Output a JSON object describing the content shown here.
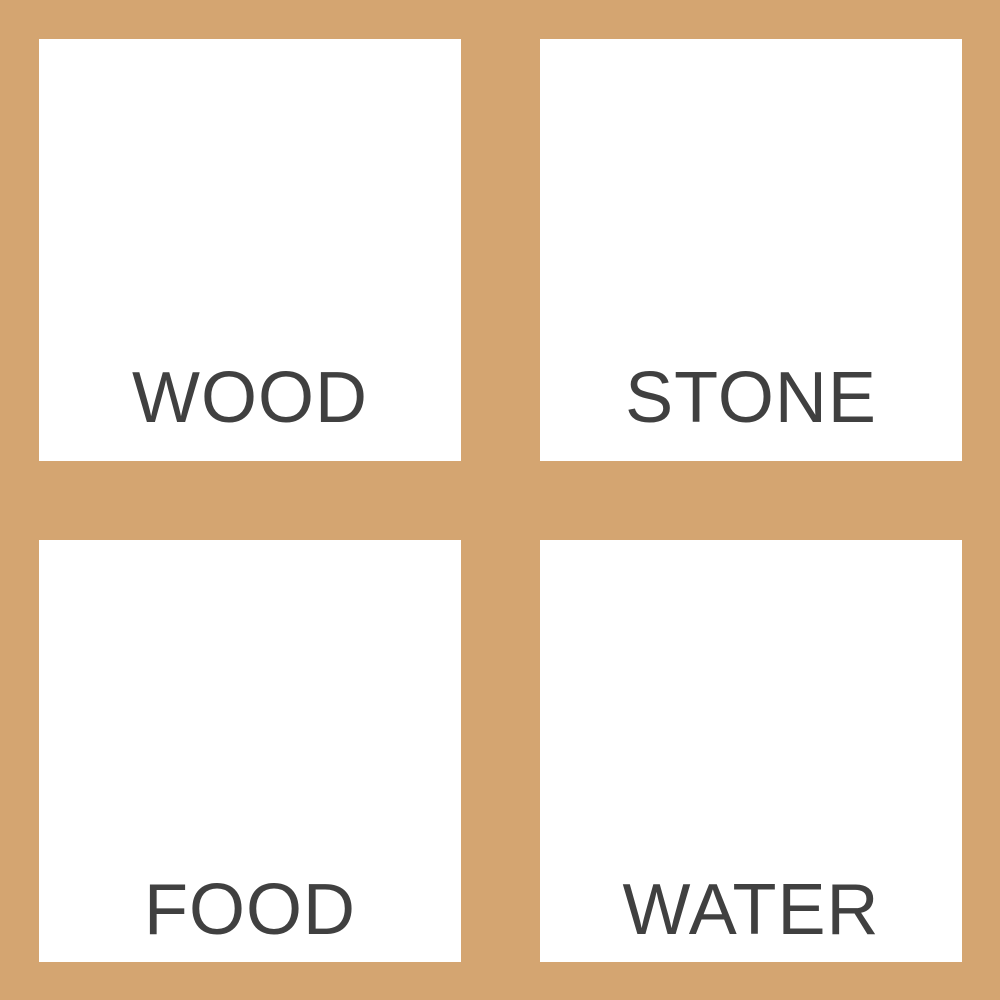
{
  "board": {
    "frame_color": "#d4a571",
    "tile_color": "#ffffff",
    "text_color": "#404040",
    "tiles": [
      {
        "label": "WOOD"
      },
      {
        "label": "STONE"
      },
      {
        "label": "FOOD"
      },
      {
        "label": "WATER"
      }
    ]
  }
}
